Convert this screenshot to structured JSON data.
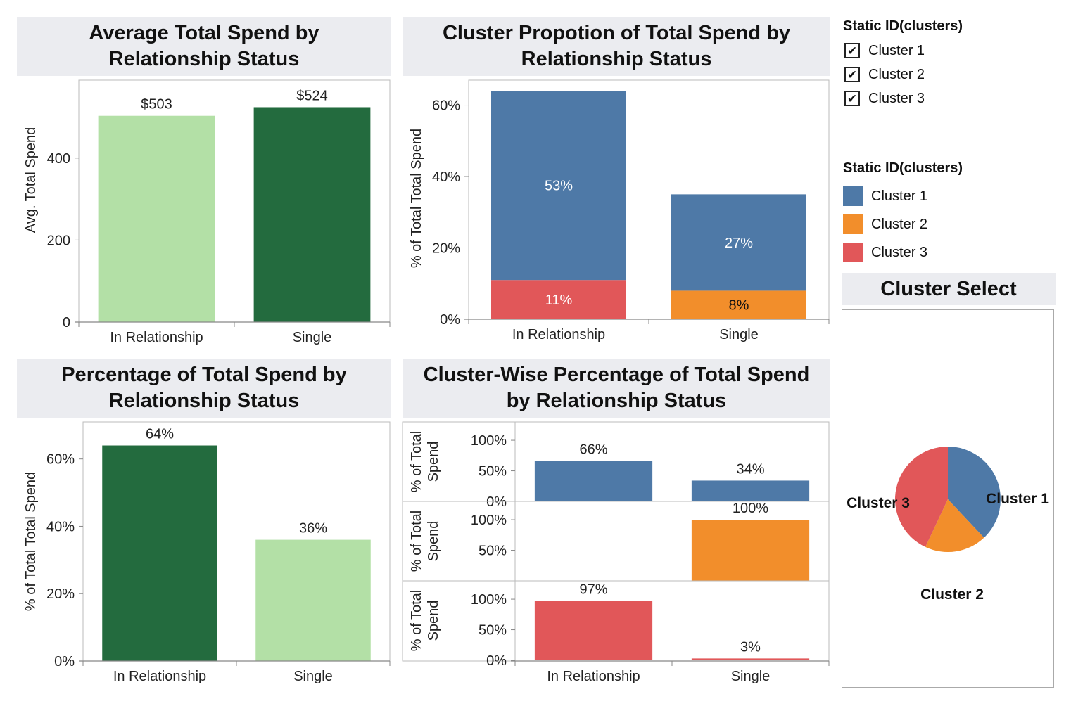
{
  "colors": {
    "cluster1": "#4e79a7",
    "cluster2": "#f28e2b",
    "cluster3": "#e15759",
    "dark_green": "#236b3e",
    "light_green": "#b3e0a6",
    "title_bg": "#ebecf0"
  },
  "filter": {
    "title": "Static ID(clusters)",
    "items": [
      {
        "label": "Cluster 1",
        "checked": true,
        "check": "✔"
      },
      {
        "label": "Cluster 2",
        "checked": true,
        "check": "✔"
      },
      {
        "label": "Cluster 3",
        "checked": true,
        "check": "✔"
      }
    ]
  },
  "legend": {
    "title": "Static ID(clusters)",
    "items": [
      {
        "label": "Cluster 1",
        "color": "#4e79a7"
      },
      {
        "label": "Cluster 2",
        "color": "#f28e2b"
      },
      {
        "label": "Cluster 3",
        "color": "#e15759"
      }
    ]
  },
  "chart_data": [
    {
      "id": "avg",
      "type": "bar",
      "title_line1": "Average Total Spend by",
      "title_line2": "Relationship Status",
      "ylabel": "Avg. Total Spend",
      "categories": [
        "In Relationship",
        "Single"
      ],
      "values": [
        503,
        524
      ],
      "data_labels": [
        "$503",
        "$524"
      ],
      "colors": [
        "#b3e0a6",
        "#236b3e"
      ],
      "ylim": [
        0,
        590
      ],
      "yticks": [
        0,
        200,
        400
      ],
      "ytick_labels": [
        "0",
        "200",
        "400"
      ]
    },
    {
      "id": "prop",
      "type": "bar",
      "stacked": true,
      "title_line1": "Cluster Propotion of Total Spend by",
      "title_line2": "Relationship Status",
      "ylabel": "% of Total Total Spend",
      "categories": [
        "In Relationship",
        "Single"
      ],
      "series": [
        {
          "cluster": "Cluster 3",
          "color": "#e15759",
          "values": [
            11,
            0
          ],
          "data_labels": [
            "11%",
            ""
          ],
          "label_color": "#ffffff"
        },
        {
          "cluster": "Cluster 2",
          "color": "#f28e2b",
          "values": [
            0,
            8
          ],
          "data_labels": [
            "",
            "8%"
          ],
          "label_color": "#111111"
        },
        {
          "cluster": "Cluster 1",
          "color": "#4e79a7",
          "values": [
            53,
            27
          ],
          "data_labels": [
            "53%",
            "27%"
          ],
          "label_color": "#ffffff"
        }
      ],
      "ylim": [
        0,
        67
      ],
      "yticks": [
        0,
        20,
        40,
        60
      ],
      "ytick_labels": [
        "0%",
        "20%",
        "40%",
        "60%"
      ]
    },
    {
      "id": "pct",
      "type": "bar",
      "title_line1": "Percentage of Total Spend by",
      "title_line2": "Relationship Status",
      "ylabel": "% of Total Total Spend",
      "categories": [
        "In Relationship",
        "Single"
      ],
      "values": [
        64,
        36
      ],
      "data_labels": [
        "64%",
        "36%"
      ],
      "colors": [
        "#236b3e",
        "#b3e0a6"
      ],
      "ylim": [
        0,
        71
      ],
      "yticks": [
        0,
        20,
        40,
        60
      ],
      "ytick_labels": [
        "0%",
        "20%",
        "40%",
        "60%"
      ]
    },
    {
      "id": "wise",
      "type": "bar",
      "title_line1": "Cluster-Wise Percentage of Total Spend",
      "title_line2": "by Relationship Status",
      "ylabel_line1": "% of Total",
      "ylabel_line2": "Spend",
      "categories": [
        "In Relationship",
        "Single"
      ],
      "rows": [
        {
          "cluster": "Cluster 1",
          "color": "#4e79a7",
          "values": [
            66,
            34
          ],
          "data_labels": [
            "66%",
            "34%"
          ],
          "ylim": [
            0,
            130
          ],
          "yticks": [
            0,
            50,
            100
          ],
          "ytick_labels": [
            "0%",
            "50%",
            "100%"
          ]
        },
        {
          "cluster": "Cluster 2",
          "color": "#f28e2b",
          "values": [
            0,
            100
          ],
          "data_labels": [
            "",
            "100%"
          ],
          "ylim": [
            0,
            130
          ],
          "yticks": [
            50,
            100
          ],
          "ytick_labels": [
            "50%",
            "100%"
          ]
        },
        {
          "cluster": "Cluster 3",
          "color": "#e15759",
          "values": [
            97,
            3
          ],
          "data_labels": [
            "97%",
            "3%"
          ],
          "ylim": [
            0,
            130
          ],
          "yticks": [
            0,
            50,
            100
          ],
          "ytick_labels": [
            "0%",
            "50%",
            "100%"
          ]
        }
      ]
    },
    {
      "id": "pie",
      "type": "pie",
      "title": "Cluster Select",
      "slices": [
        {
          "label": "Cluster 1",
          "value": 38,
          "color": "#4e79a7"
        },
        {
          "label": "Cluster 2",
          "value": 19,
          "color": "#f28e2b"
        },
        {
          "label": "Cluster 3",
          "value": 43,
          "color": "#e15759"
        }
      ]
    }
  ]
}
